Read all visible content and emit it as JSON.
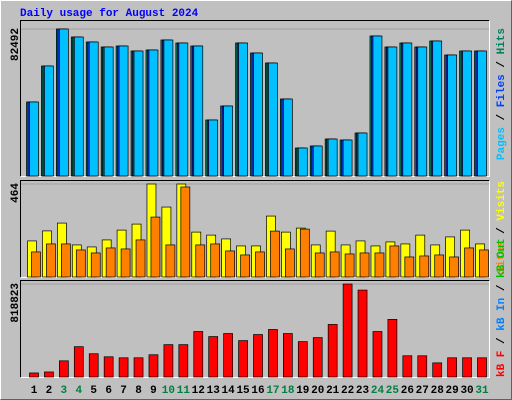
{
  "chart_data": [
    {
      "type": "bar",
      "title": "Daily usage for August 2024",
      "ylim": [
        0,
        82492
      ],
      "yticks": [
        82492
      ],
      "legend_separator": "/",
      "series": [
        {
          "name": "Pages",
          "color": "#00c0ff",
          "values": [
            41530,
            61730,
            82492,
            78000,
            75200,
            72390,
            72950,
            70150,
            70710,
            76320,
            74640,
            72950,
            31430,
            39280,
            74640,
            69020,
            63410,
            43210,
            15710,
            16840,
            20760,
            20200,
            24130,
            78560,
            72390,
            74640,
            72390,
            75760,
            67900,
            70150,
            70150
          ]
        },
        {
          "name": "Files",
          "color": "#0040ff",
          "values": [
            41530,
            61730,
            82492,
            78000,
            75200,
            72390,
            72950,
            70150,
            70710,
            76320,
            74640,
            72950,
            31430,
            39280,
            74640,
            69020,
            63410,
            43210,
            15710,
            16840,
            20760,
            20200,
            24130,
            78560,
            72390,
            74640,
            72390,
            75760,
            67900,
            70150,
            70150
          ]
        },
        {
          "name": "Hits",
          "color": "#00805c",
          "values": [
            41530,
            61730,
            82492,
            78000,
            75200,
            72390,
            72950,
            70150,
            70710,
            76320,
            74640,
            72950,
            31430,
            39280,
            74640,
            69020,
            63410,
            43210,
            15710,
            16840,
            20760,
            20200,
            24130,
            78560,
            72390,
            74640,
            72390,
            75760,
            67900,
            70150,
            70150
          ]
        }
      ]
    },
    {
      "type": "bar",
      "ylim": [
        0,
        464
      ],
      "yticks": [
        464
      ],
      "legend_separator": "/",
      "series": [
        {
          "name": "Sites",
          "color": "#ff8000",
          "values": [
            125,
            165,
            165,
            135,
            120,
            145,
            140,
            185,
            299,
            160,
            449,
            160,
            165,
            130,
            110,
            125,
            229,
            140,
            239,
            120,
            125,
            115,
            120,
            120,
            155,
            100,
            105,
            110,
            100,
            145,
            135
          ]
        },
        {
          "name": "Visits",
          "color": "#ffff00",
          "values": [
            180,
            230,
            269,
            160,
            150,
            185,
            234,
            264,
            464,
            349,
            464,
            224,
            209,
            190,
            155,
            155,
            304,
            224,
            244,
            160,
            229,
            160,
            180,
            155,
            175,
            165,
            209,
            160,
            200,
            234,
            165
          ]
        }
      ]
    },
    {
      "type": "bar",
      "ylim": [
        0,
        818823
      ],
      "yticks": [
        818823
      ],
      "legend_separator": "/",
      "categories": [
        "1",
        "2",
        "3",
        "4",
        "5",
        "6",
        "7",
        "8",
        "9",
        "10",
        "11",
        "12",
        "13",
        "14",
        "15",
        "16",
        "17",
        "18",
        "19",
        "20",
        "21",
        "22",
        "23",
        "24",
        "25",
        "26",
        "27",
        "28",
        "29",
        "30",
        "31"
      ],
      "highlight_color": "#008040",
      "highlight_categories": [
        2,
        3,
        9,
        10,
        16,
        17,
        23,
        24,
        30
      ],
      "series": [
        {
          "name": "kB F",
          "color": "#ff0000",
          "values": [
            35600,
            44500,
            142400,
            267000,
            204700,
            178000,
            169100,
            169100,
            195800,
            284800,
            284800,
            400500,
            356000,
            382700,
            320400,
            373800,
            418300,
            382700,
            311500,
            347100,
            462800,
            818823,
            765400,
            400500,
            507300,
            186900,
            186900,
            124600,
            169100,
            169100,
            169100
          ]
        },
        {
          "name": "kB In",
          "color": "#0080ff",
          "values": [
            null,
            null,
            null,
            null,
            null,
            null,
            null,
            null,
            null,
            null,
            null,
            null,
            null,
            null,
            null,
            null,
            null,
            null,
            null,
            null,
            null,
            null,
            null,
            null,
            null,
            null,
            null,
            null,
            null,
            null,
            null
          ]
        },
        {
          "name": "kB Out",
          "color": "#00c000",
          "values": [
            null,
            null,
            null,
            null,
            null,
            null,
            null,
            null,
            null,
            null,
            null,
            null,
            null,
            null,
            null,
            null,
            null,
            null,
            null,
            null,
            null,
            null,
            null,
            null,
            null,
            null,
            null,
            null,
            null,
            null,
            null
          ]
        }
      ]
    }
  ]
}
